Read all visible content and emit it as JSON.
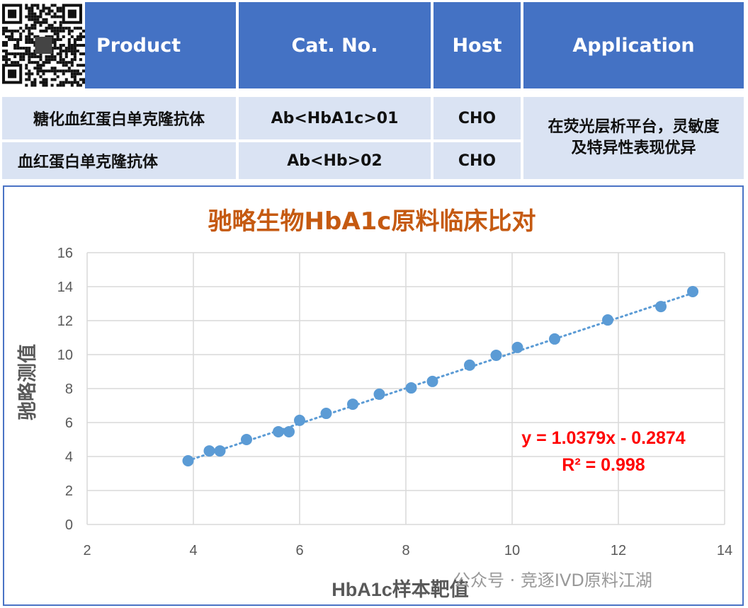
{
  "table": {
    "headers": [
      "Product",
      "Cat. No.",
      "Host",
      "Application"
    ],
    "rows": [
      {
        "product": "糖化血红蛋白单克隆抗体",
        "cat": "Ab<HbA1c>01",
        "host": "CHO"
      },
      {
        "product": "血红蛋白单克隆抗体",
        "cat": "Ab<Hb>02",
        "host": "CHO"
      }
    ],
    "application": "在荧光层析平台，灵敏度及特异性表现优异",
    "header_color": "#4472c4",
    "row_color": "#dae3f3"
  },
  "qr_icon": "qr-code",
  "watermark": "公众号 · 竞逐IVD原料江湖",
  "chart_data": {
    "type": "scatter",
    "title": "驰略生物HbA1c原料临床比对",
    "xlabel": "HbA1c样本靶值",
    "ylabel": "驰略测值",
    "xlim": [
      2,
      14
    ],
    "ylim": [
      0,
      16
    ],
    "xticks": [
      2,
      4,
      6,
      8,
      10,
      12,
      14
    ],
    "yticks": [
      0,
      2,
      4,
      6,
      8,
      10,
      12,
      14,
      16
    ],
    "grid": true,
    "point_color": "#5b9bd5",
    "x": [
      3.9,
      4.3,
      4.5,
      5.0,
      5.6,
      5.8,
      6.0,
      6.5,
      7.0,
      7.5,
      8.1,
      8.5,
      9.2,
      9.7,
      10.1,
      10.8,
      11.8,
      12.8,
      13.4
    ],
    "y": [
      3.75,
      4.33,
      4.33,
      5.0,
      5.46,
      5.46,
      6.13,
      6.54,
      7.08,
      7.67,
      8.04,
      8.42,
      9.38,
      9.96,
      10.42,
      10.92,
      12.04,
      12.83,
      13.71
    ],
    "trendline": {
      "type": "linear",
      "slope": 1.0379,
      "intercept": -0.2874,
      "style": "dotted"
    },
    "annotations": {
      "equation": "y = 1.0379x - 0.2874",
      "r2": "R² = 0.998",
      "color": "#ff0000"
    }
  }
}
